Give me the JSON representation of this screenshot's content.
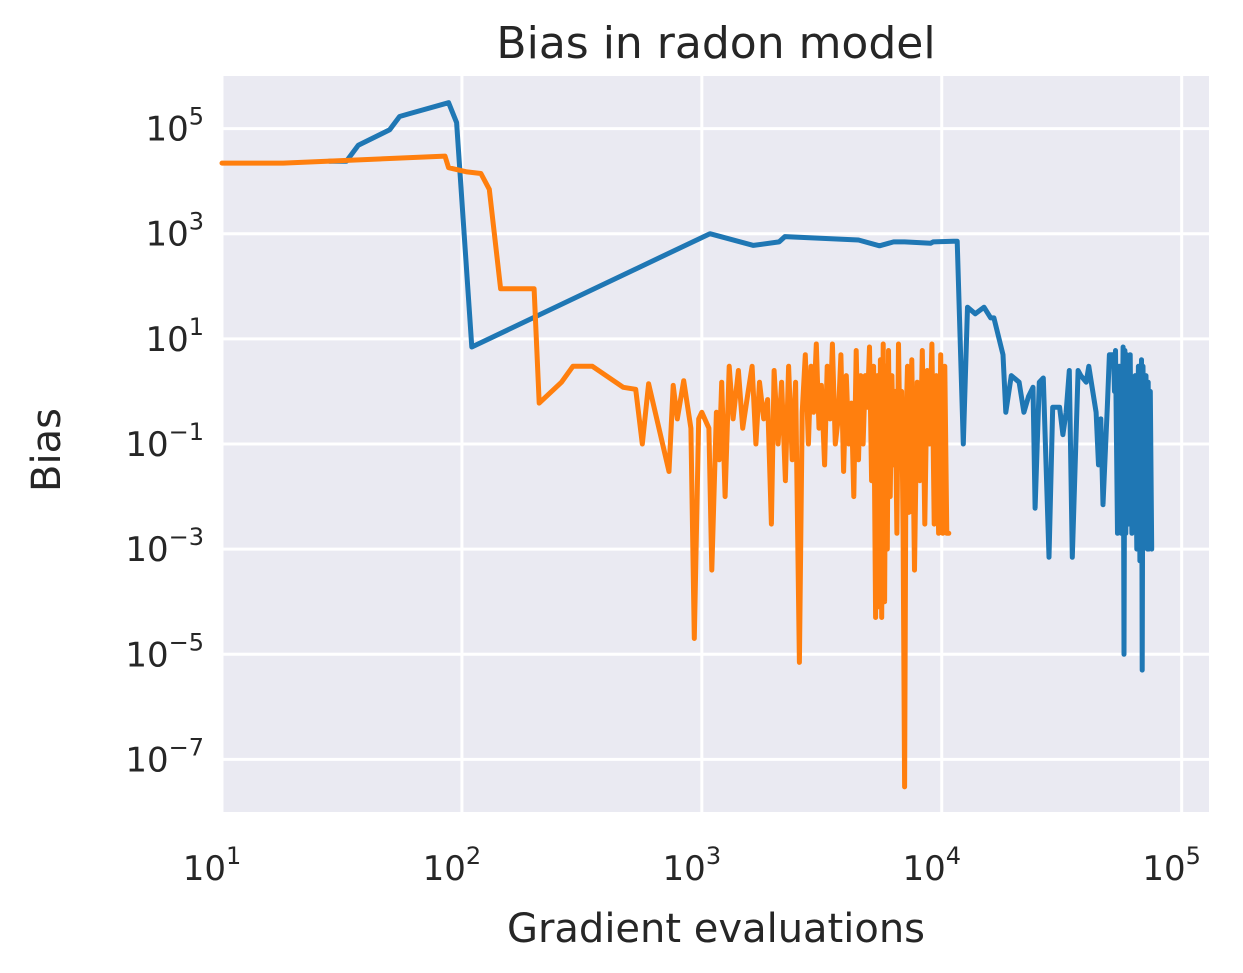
{
  "chart_data": {
    "type": "line",
    "title": "Bias in radon model",
    "xlabel": "Gradient evaluations",
    "ylabel": "Bias",
    "xscale": "log",
    "yscale": "log",
    "xlim": [
      10,
      130000
    ],
    "ylim": [
      1e-08,
      1000000.0
    ],
    "grid": true,
    "colors": {
      "background": "#eaeaf2",
      "grid": "#ffffff",
      "text": "#262626"
    },
    "x_ticks": [
      {
        "base": "10",
        "exp": "1",
        "value": 10
      },
      {
        "base": "10",
        "exp": "2",
        "value": 100
      },
      {
        "base": "10",
        "exp": "3",
        "value": 1000
      },
      {
        "base": "10",
        "exp": "4",
        "value": 10000
      },
      {
        "base": "10",
        "exp": "5",
        "value": 100000
      }
    ],
    "y_ticks": [
      {
        "base": "10",
        "exp": "5",
        "value": 100000.0
      },
      {
        "base": "10",
        "exp": "3",
        "value": 1000.0
      },
      {
        "base": "10",
        "exp": "1",
        "value": 10.0
      },
      {
        "base": "10",
        "exp": "−1",
        "value": 0.1
      },
      {
        "base": "10",
        "exp": "−3",
        "value": 0.001
      },
      {
        "base": "10",
        "exp": "−5",
        "value": 1e-05
      },
      {
        "base": "10",
        "exp": "−7",
        "value": 1e-07
      }
    ],
    "series": [
      {
        "color": "#1f77b4",
        "points": [
          [
            28,
            24000
          ],
          [
            33,
            24000
          ],
          [
            37,
            48000
          ],
          [
            50,
            95000
          ],
          [
            55,
            170000
          ],
          [
            60,
            190000
          ],
          [
            88,
            310000
          ],
          [
            95,
            130000
          ],
          [
            110,
            7
          ],
          [
            1080,
            1000
          ],
          [
            1640,
            600
          ],
          [
            2100,
            700
          ],
          [
            2220,
            880
          ],
          [
            4500,
            760
          ],
          [
            5500,
            590
          ],
          [
            6300,
            700
          ],
          [
            7000,
            700
          ],
          [
            9000,
            660
          ],
          [
            9200,
            700
          ],
          [
            11200,
            720
          ],
          [
            11600,
            720
          ],
          [
            12300,
            0.1
          ],
          [
            12800,
            40
          ],
          [
            13800,
            30
          ],
          [
            15000,
            40
          ],
          [
            16000,
            25
          ],
          [
            16500,
            25
          ],
          [
            18000,
            5
          ],
          [
            18500,
            0.4
          ],
          [
            19500,
            2
          ],
          [
            21000,
            1.5
          ],
          [
            22000,
            0.4
          ],
          [
            23000,
            0.8
          ],
          [
            24000,
            1.2
          ],
          [
            24500,
            0.006
          ],
          [
            25500,
            1.5
          ],
          [
            26500,
            1.8
          ],
          [
            28000,
            0.0007
          ],
          [
            29000,
            0.5
          ],
          [
            31000,
            0.5
          ],
          [
            32000,
            0.15
          ],
          [
            33000,
            0.4
          ],
          [
            34000,
            2.5
          ],
          [
            35000,
            0.0007
          ],
          [
            37000,
            2.5
          ],
          [
            38000,
            2
          ],
          [
            40000,
            1.5
          ],
          [
            41000,
            3
          ],
          [
            42000,
            1.5
          ],
          [
            44000,
            0.4
          ],
          [
            45000,
            0.04
          ],
          [
            46000,
            0.3
          ],
          [
            47000,
            0.007
          ],
          [
            49000,
            0.5
          ],
          [
            50000,
            5
          ],
          [
            52000,
            5
          ],
          [
            52500,
            1
          ],
          [
            53000,
            6
          ],
          [
            54000,
            0.002
          ],
          [
            55000,
            3
          ],
          [
            55500,
            0.5
          ],
          [
            56000,
            0.002
          ],
          [
            57000,
            7
          ],
          [
            57500,
            1e-05
          ],
          [
            58000,
            6
          ],
          [
            58500,
            0.002
          ],
          [
            59000,
            5
          ],
          [
            60000,
            0.003
          ],
          [
            61000,
            5
          ],
          [
            62000,
            0.002
          ],
          [
            63000,
            0.6
          ],
          [
            64000,
            2
          ],
          [
            65000,
            0.001
          ],
          [
            66000,
            3
          ],
          [
            67000,
            0.0006
          ],
          [
            68000,
            4
          ],
          [
            68500,
            5e-06
          ],
          [
            69000,
            3
          ],
          [
            70000,
            0.003
          ],
          [
            71000,
            2
          ],
          [
            72000,
            0.001
          ],
          [
            72500,
            1.5
          ],
          [
            73000,
            0.001
          ],
          [
            74000,
            1
          ],
          [
            75000,
            0.001
          ]
        ]
      },
      {
        "color": "#ff7f0e",
        "points": [
          [
            10,
            22000
          ],
          [
            18,
            22000
          ],
          [
            85,
            30000
          ],
          [
            88,
            18000
          ],
          [
            105,
            15000
          ],
          [
            120,
            14000
          ],
          [
            130,
            7000
          ],
          [
            145,
            90
          ],
          [
            200,
            90
          ],
          [
            210,
            0.6
          ],
          [
            260,
            1.5
          ],
          [
            290,
            3
          ],
          [
            350,
            3
          ],
          [
            470,
            1.2
          ],
          [
            530,
            1.1
          ],
          [
            565,
            0.1
          ],
          [
            600,
            1.4
          ],
          [
            730,
            0.03
          ],
          [
            760,
            1.3
          ],
          [
            790,
            0.3
          ],
          [
            840,
            1.6
          ],
          [
            900,
            0.2
          ],
          [
            930,
            2e-05
          ],
          [
            970,
            0.3
          ],
          [
            1000,
            0.4
          ],
          [
            1070,
            0.2
          ],
          [
            1100,
            0.0004
          ],
          [
            1150,
            0.4
          ],
          [
            1180,
            0.05
          ],
          [
            1210,
            1.5
          ],
          [
            1250,
            0.01
          ],
          [
            1300,
            3
          ],
          [
            1350,
            0.3
          ],
          [
            1420,
            2.5
          ],
          [
            1480,
            0.2
          ],
          [
            1560,
            1
          ],
          [
            1620,
            3
          ],
          [
            1680,
            0.1
          ],
          [
            1740,
            1.5
          ],
          [
            1810,
            0.3
          ],
          [
            1880,
            0.7
          ],
          [
            1950,
            0.003
          ],
          [
            2000,
            2.5
          ],
          [
            2080,
            0.1
          ],
          [
            2150,
            1.5
          ],
          [
            2230,
            0.02
          ],
          [
            2300,
            3
          ],
          [
            2380,
            0.05
          ],
          [
            2460,
            1.5
          ],
          [
            2550,
            7e-06
          ],
          [
            2620,
            0.4
          ],
          [
            2700,
            5
          ],
          [
            2780,
            0.1
          ],
          [
            2850,
            3
          ],
          [
            2920,
            0.4
          ],
          [
            3000,
            8
          ],
          [
            3080,
            0.2
          ],
          [
            3150,
            1.3
          ],
          [
            3250,
            0.04
          ],
          [
            3330,
            3
          ],
          [
            3420,
            0.3
          ],
          [
            3500,
            8
          ],
          [
            3600,
            0.1
          ],
          [
            3700,
            0.3
          ],
          [
            3800,
            5
          ],
          [
            3900,
            0.03
          ],
          [
            4000,
            2
          ],
          [
            4100,
            0.1
          ],
          [
            4200,
            0.6
          ],
          [
            4300,
            0.01
          ],
          [
            4400,
            6
          ],
          [
            4500,
            0.05
          ],
          [
            4600,
            2
          ],
          [
            4700,
            0.1
          ],
          [
            4800,
            2
          ],
          [
            4900,
            0.5
          ],
          [
            5000,
            7
          ],
          [
            5100,
            0.02
          ],
          [
            5200,
            3
          ],
          [
            5300,
            5e-05
          ],
          [
            5400,
            2
          ],
          [
            5480,
            8e-05
          ],
          [
            5550,
            4
          ],
          [
            5620,
            5e-05
          ],
          [
            5700,
            8
          ],
          [
            5780,
            0.0001
          ],
          [
            5850,
            3
          ],
          [
            5930,
            0.001
          ],
          [
            6000,
            6
          ],
          [
            6100,
            0.01
          ],
          [
            6200,
            2
          ],
          [
            6300,
            0.04
          ],
          [
            6400,
            1
          ],
          [
            6500,
            0.002
          ],
          [
            6600,
            8
          ],
          [
            6700,
            0.1
          ],
          [
            6800,
            1
          ],
          [
            6900,
            0.002
          ],
          [
            7000,
            3e-08
          ],
          [
            7100,
            0.3
          ],
          [
            7200,
            3
          ],
          [
            7300,
            0.005
          ],
          [
            7500,
            4
          ],
          [
            7700,
            0.0004
          ],
          [
            7900,
            1.5
          ],
          [
            8100,
            0.02
          ],
          [
            8300,
            6
          ],
          [
            8500,
            0.003
          ],
          [
            8700,
            2.5
          ],
          [
            8900,
            0.1
          ],
          [
            9100,
            8
          ],
          [
            9300,
            0.003
          ],
          [
            9500,
            2
          ],
          [
            9700,
            0.002
          ],
          [
            9900,
            5
          ],
          [
            10100,
            0.002
          ],
          [
            10300,
            3
          ],
          [
            10500,
            0.002
          ],
          [
            10700,
            0.002
          ]
        ]
      }
    ]
  }
}
